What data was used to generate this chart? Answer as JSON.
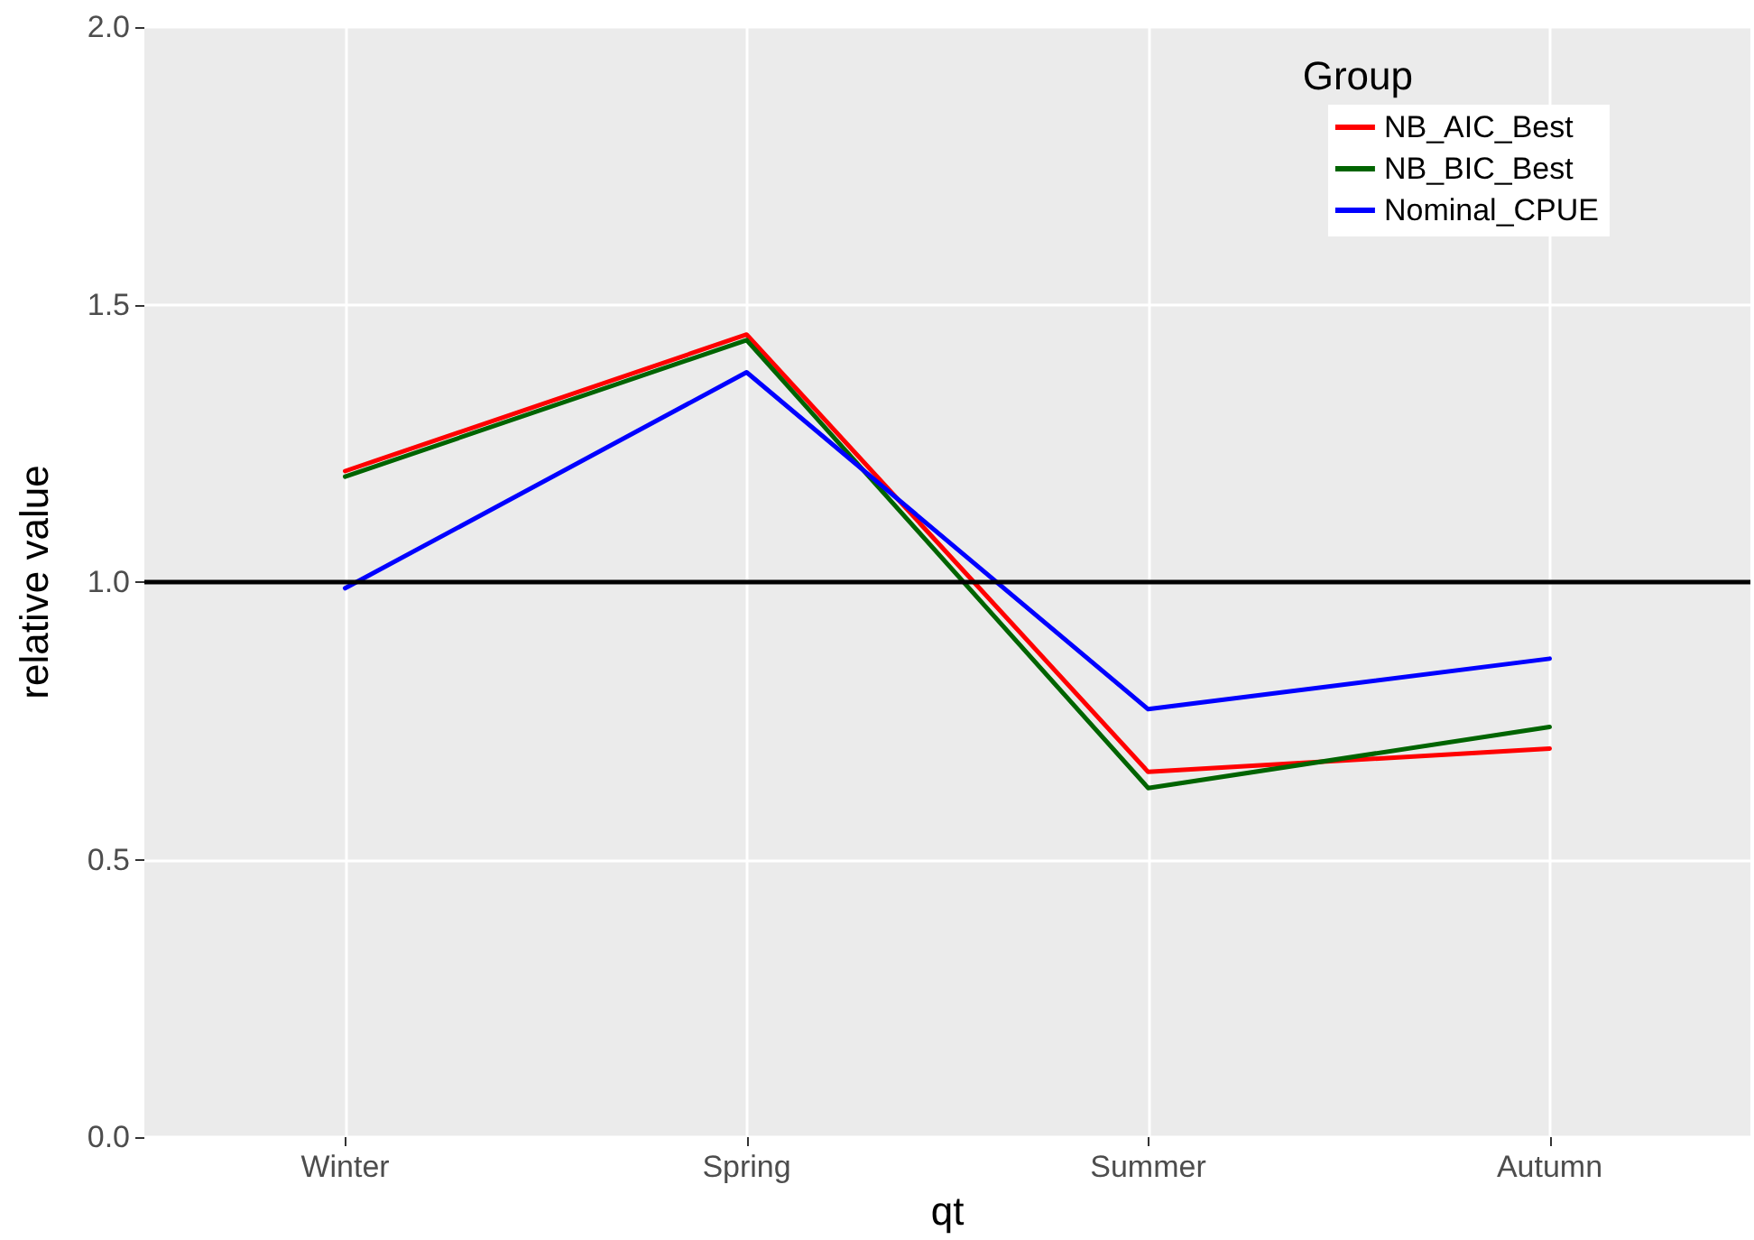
{
  "chart_data": {
    "type": "line",
    "xlabel": "qt",
    "ylabel": "relative value",
    "legend_title": "Group",
    "categories": [
      "Winter",
      "Spring",
      "Summer",
      "Autumn"
    ],
    "series": [
      {
        "name": "NB_AIC_Best",
        "color": "#ff0000",
        "values": [
          1.2,
          1.446,
          0.658,
          0.7
        ]
      },
      {
        "name": "NB_BIC_Best",
        "color": "#006400",
        "values": [
          1.19,
          1.436,
          0.629,
          0.739
        ]
      },
      {
        "name": "Nominal_CPUE",
        "color": "#0000ff",
        "values": [
          0.989,
          1.378,
          0.771,
          0.862
        ]
      }
    ],
    "ylim": [
      0,
      2
    ],
    "yticks": [
      {
        "value": 0,
        "label": "0.0"
      },
      {
        "value": 0.5,
        "label": "0.5"
      },
      {
        "value": 1,
        "label": "1.0"
      },
      {
        "value": 1.5,
        "label": "1.5"
      },
      {
        "value": 2,
        "label": "2.0"
      }
    ],
    "ref_lines": [
      {
        "axis": "y",
        "value": 1,
        "color": "#000000"
      }
    ],
    "grid": true,
    "legend": "top right",
    "marker": "none",
    "line_style": "solid"
  }
}
